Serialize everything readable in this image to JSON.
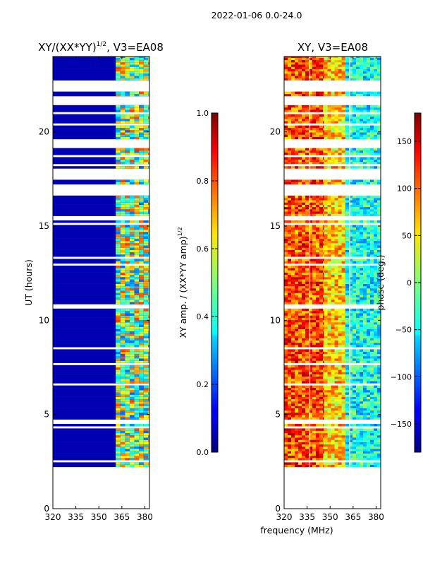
{
  "figure": {
    "suptitle": "2022-01-06 0.0-24.0",
    "common_xlabel": "frequency (MHz)",
    "superscript_half": "1/2"
  },
  "chart_data": [
    {
      "type": "heatmap",
      "title_prefix": "XY/(XX*YY)",
      "title_suffix": ", V3=EA08",
      "ylabel": "UT (hours)",
      "x_ticks": [
        "320",
        "335",
        "350",
        "365",
        "380"
      ],
      "x_tick_values": [
        320,
        335,
        350,
        365,
        380
      ],
      "y_ticks": [
        "0",
        "5",
        "10",
        "15",
        "20"
      ],
      "y_tick_values": [
        0,
        5,
        10,
        15,
        20
      ],
      "xlim": [
        320,
        383
      ],
      "ylim": [
        0,
        24
      ],
      "data_start_hour": 2.1,
      "colorbar": {
        "label_prefix": "XY amp. / (XX*YY amp)",
        "ticks": [
          "0.0",
          "0.2",
          "0.4",
          "0.6",
          "0.8",
          "1.0"
        ],
        "tick_values": [
          0.0,
          0.2,
          0.4,
          0.6,
          0.8,
          1.0
        ],
        "range": [
          0,
          1
        ]
      },
      "dominant_value": 0.05,
      "band_values": [
        {
          "f_start": 361,
          "f_end": 383,
          "value": 0.55
        }
      ]
    },
    {
      "type": "heatmap",
      "title": "XY, V3=EA08",
      "x_ticks": [
        "320",
        "335",
        "350",
        "365",
        "380"
      ],
      "x_tick_values": [
        320,
        335,
        350,
        365,
        380
      ],
      "y_ticks": [
        "0",
        "5",
        "10",
        "15",
        "20"
      ],
      "y_tick_values": [
        0,
        5,
        10,
        15,
        20
      ],
      "xlim": [
        320,
        383
      ],
      "ylim": [
        0,
        24
      ],
      "data_start_hour": 2.1,
      "colorbar": {
        "label": "phase (deg.)",
        "ticks": [
          "−150",
          "−100",
          "−50",
          "0",
          "50",
          "100",
          "150"
        ],
        "tick_values": [
          -150,
          -100,
          -50,
          0,
          50,
          100,
          150
        ],
        "range": [
          -180,
          180
        ]
      },
      "phase_regions": [
        {
          "f_start": 320,
          "f_end": 346,
          "value": 110
        },
        {
          "f_start": 346,
          "f_end": 360,
          "value": 60
        },
        {
          "f_start": 360,
          "f_end": 383,
          "value": -40
        }
      ]
    }
  ]
}
